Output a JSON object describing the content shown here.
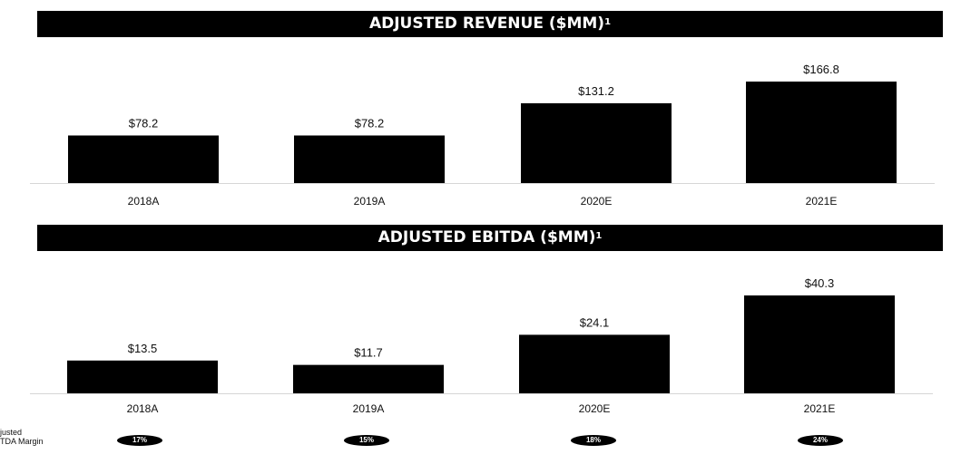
{
  "revenue": {
    "title": "ADJUSTED REVENUE ($MM)",
    "title_sup": "1"
  },
  "ebitda": {
    "title": "ADJUSTED EBITDA ($MM)",
    "title_sup": "1"
  },
  "margin": {
    "label": "justed\nTDA Margin",
    "pills": [
      "17%",
      "15%",
      "18%",
      "24%"
    ]
  },
  "footnote": "",
  "chart_data": [
    {
      "type": "bar",
      "title": "ADJUSTED REVENUE ($MM)",
      "categories": [
        "2018A",
        "2019A",
        "2020E",
        "2021E"
      ],
      "values": [
        78.2,
        78.2,
        131.2,
        166.8
      ],
      "labels": [
        "$78.2",
        "$78.2",
        "$131.2",
        "$166.8"
      ],
      "ylim": [
        0,
        166.8
      ],
      "grid": false,
      "xlabel": "",
      "ylabel": ""
    },
    {
      "type": "bar",
      "title": "ADJUSTED EBITDA ($MM)",
      "categories": [
        "2018A",
        "2019A",
        "2020E",
        "2021E"
      ],
      "values": [
        13.5,
        11.7,
        24.1,
        40.3
      ],
      "labels": [
        "$13.5",
        "$11.7",
        "$24.1",
        "$40.3"
      ],
      "ylim": [
        0,
        40.3
      ],
      "grid": false,
      "xlabel": "",
      "ylabel": ""
    }
  ]
}
